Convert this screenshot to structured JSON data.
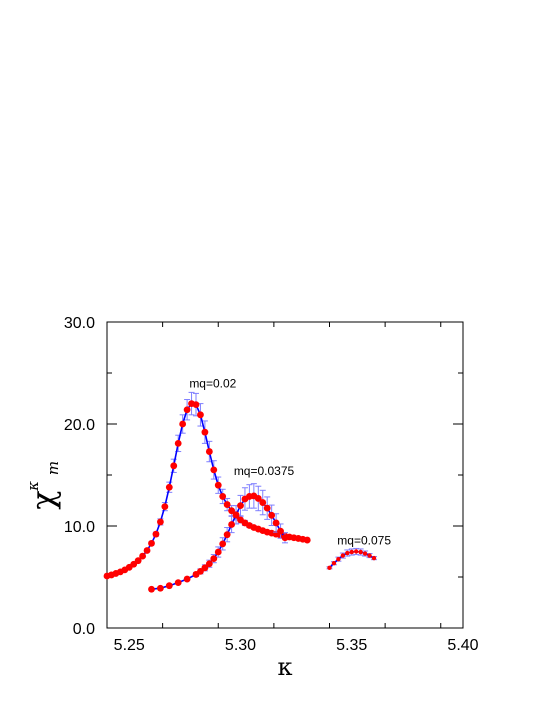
{
  "chart_data": {
    "type": "scatter",
    "title": "",
    "xlabel": "κ",
    "ylabel": "χ",
    "ylabel_sup": "κ",
    "ylabel_sub": "m",
    "xlim": [
      5.24,
      5.4
    ],
    "ylim": [
      0.0,
      30.0
    ],
    "xticks": [
      5.25,
      5.3,
      5.35,
      5.4
    ],
    "xtick_labels": [
      "5.25",
      "5.30",
      "5.35",
      "5.40"
    ],
    "yticks": [
      0.0,
      10.0,
      20.0,
      30.0
    ],
    "ytick_labels": [
      "0.0",
      "10.0",
      "20.0",
      "30.0"
    ],
    "grid": false,
    "colors": {
      "curve": "#ff0000",
      "fit": "#0000ff",
      "errorbar": "#7f7fff"
    },
    "series": [
      {
        "label": "mq=0.02",
        "label_at": [
          5.277,
          23.6
        ],
        "x": [
          5.24,
          5.242,
          5.244,
          5.246,
          5.248,
          5.25,
          5.252,
          5.254,
          5.256,
          5.258,
          5.26,
          5.262,
          5.264,
          5.266,
          5.268,
          5.27,
          5.272,
          5.274,
          5.276,
          5.278,
          5.28,
          5.282,
          5.284,
          5.286,
          5.288,
          5.29,
          5.292,
          5.294,
          5.296,
          5.298,
          5.3,
          5.302,
          5.304,
          5.306,
          5.308,
          5.31,
          5.312,
          5.314,
          5.316,
          5.318,
          5.32,
          5.322,
          5.324,
          5.326,
          5.328,
          5.33
        ],
        "y": [
          5.1,
          5.2,
          5.35,
          5.5,
          5.7,
          5.95,
          6.25,
          6.6,
          7.05,
          7.6,
          8.3,
          9.2,
          10.4,
          11.9,
          13.8,
          15.9,
          18.1,
          20.0,
          21.4,
          22.0,
          21.9,
          20.9,
          19.2,
          17.3,
          15.5,
          14.0,
          12.9,
          12.1,
          11.5,
          11.0,
          10.6,
          10.3,
          10.05,
          9.85,
          9.7,
          9.55,
          9.4,
          9.3,
          9.2,
          9.1,
          9.0,
          8.92,
          8.85,
          8.78,
          8.7,
          8.62
        ],
        "err": [
          0,
          0,
          0,
          0,
          0,
          0,
          0,
          0,
          0.05,
          0.1,
          0.15,
          0.2,
          0.3,
          0.4,
          0.5,
          0.65,
          0.8,
          0.9,
          1.0,
          1.1,
          1.1,
          1.1,
          1.1,
          1.0,
          0.9,
          0.8,
          0.7,
          0.6,
          0.5,
          0.4,
          0.3,
          0.25,
          0.2,
          0.15,
          0.1,
          0.1,
          0.1,
          0.1,
          0.05,
          0.05,
          0.05,
          0,
          0,
          0,
          0,
          0
        ]
      },
      {
        "label": "mq=0.0375",
        "label_at": [
          5.297,
          15.0
        ],
        "x": [
          5.26,
          5.264,
          5.268,
          5.272,
          5.276,
          5.28,
          5.282,
          5.284,
          5.286,
          5.288,
          5.29,
          5.292,
          5.294,
          5.296,
          5.298,
          5.3,
          5.302,
          5.304,
          5.306,
          5.308,
          5.31,
          5.312,
          5.314,
          5.316,
          5.318,
          5.32
        ],
        "y": [
          3.8,
          3.9,
          4.15,
          4.45,
          4.8,
          5.25,
          5.55,
          5.9,
          6.3,
          6.8,
          7.45,
          8.25,
          9.15,
          10.15,
          11.1,
          12.0,
          12.65,
          12.9,
          12.95,
          12.7,
          12.3,
          11.75,
          11.05,
          10.3,
          9.5,
          8.85
        ],
        "err": [
          0,
          0,
          0,
          0,
          0.1,
          0.2,
          0.25,
          0.3,
          0.35,
          0.4,
          0.5,
          0.6,
          0.7,
          0.8,
          0.9,
          1.0,
          1.1,
          1.15,
          1.2,
          1.2,
          1.2,
          1.1,
          1.0,
          0.9,
          0.7,
          0.5
        ]
      },
      {
        "label": "mq=0.075",
        "label_at": [
          5.3435,
          8.2
        ],
        "x": [
          5.34,
          5.342,
          5.344,
          5.346,
          5.348,
          5.35,
          5.352,
          5.354,
          5.356,
          5.358,
          5.36
        ],
        "y": [
          5.9,
          6.35,
          6.75,
          7.1,
          7.35,
          7.45,
          7.5,
          7.45,
          7.3,
          7.1,
          6.85
        ],
        "err": [
          0.1,
          0.15,
          0.2,
          0.25,
          0.3,
          0.3,
          0.3,
          0.3,
          0.25,
          0.2,
          0.15
        ]
      }
    ]
  }
}
